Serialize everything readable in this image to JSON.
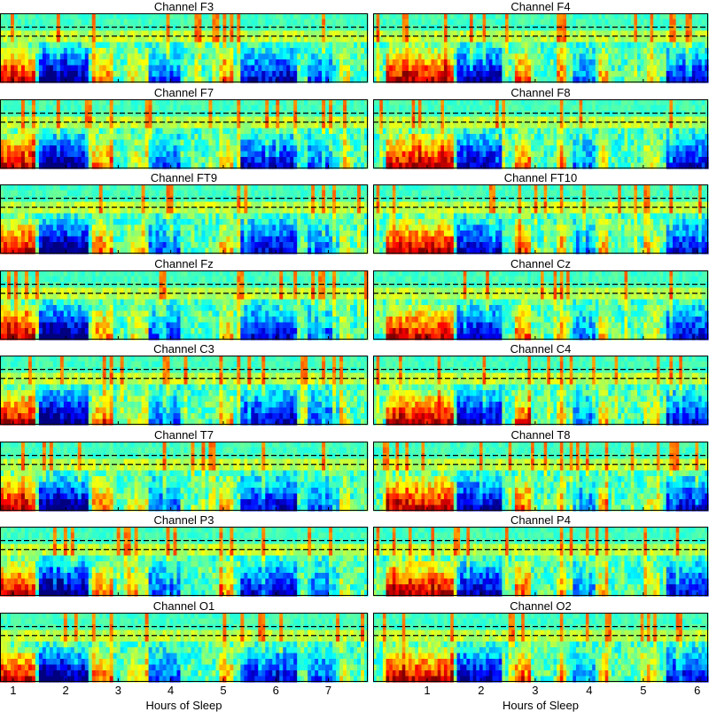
{
  "chart_data": {
    "type": "heatmap",
    "description_units": "time (hours) vs frequency",
    "xlabel": "Hours of Sleep",
    "colormap": "jet",
    "columns": [
      {
        "x_ticks": [
          1,
          2,
          3,
          4,
          5,
          6,
          7
        ],
        "x_range": [
          0.75,
          7.75
        ],
        "xlabel": "Hours of Sleep",
        "panels": [
          {
            "title": "Channel F3"
          },
          {
            "title": "Channel F7"
          },
          {
            "title": "Channel FT9"
          },
          {
            "title": "Channel Fz"
          },
          {
            "title": "Channel C3"
          },
          {
            "title": "Channel T7"
          },
          {
            "title": "Channel P3"
          },
          {
            "title": "Channel O1"
          }
        ]
      },
      {
        "x_ticks": [
          1,
          2,
          3,
          4,
          5,
          6
        ],
        "x_range": [
          0.0,
          6.2
        ],
        "xlabel": "Hours of Sleep",
        "panels": [
          {
            "title": "Channel F4"
          },
          {
            "title": "Channel F8"
          },
          {
            "title": "Channel FT10"
          },
          {
            "title": "Channel Cz"
          },
          {
            "title": "Channel C4"
          },
          {
            "title": "Channel T8"
          },
          {
            "title": "Channel P4"
          },
          {
            "title": "Channel O2"
          }
        ]
      }
    ]
  }
}
